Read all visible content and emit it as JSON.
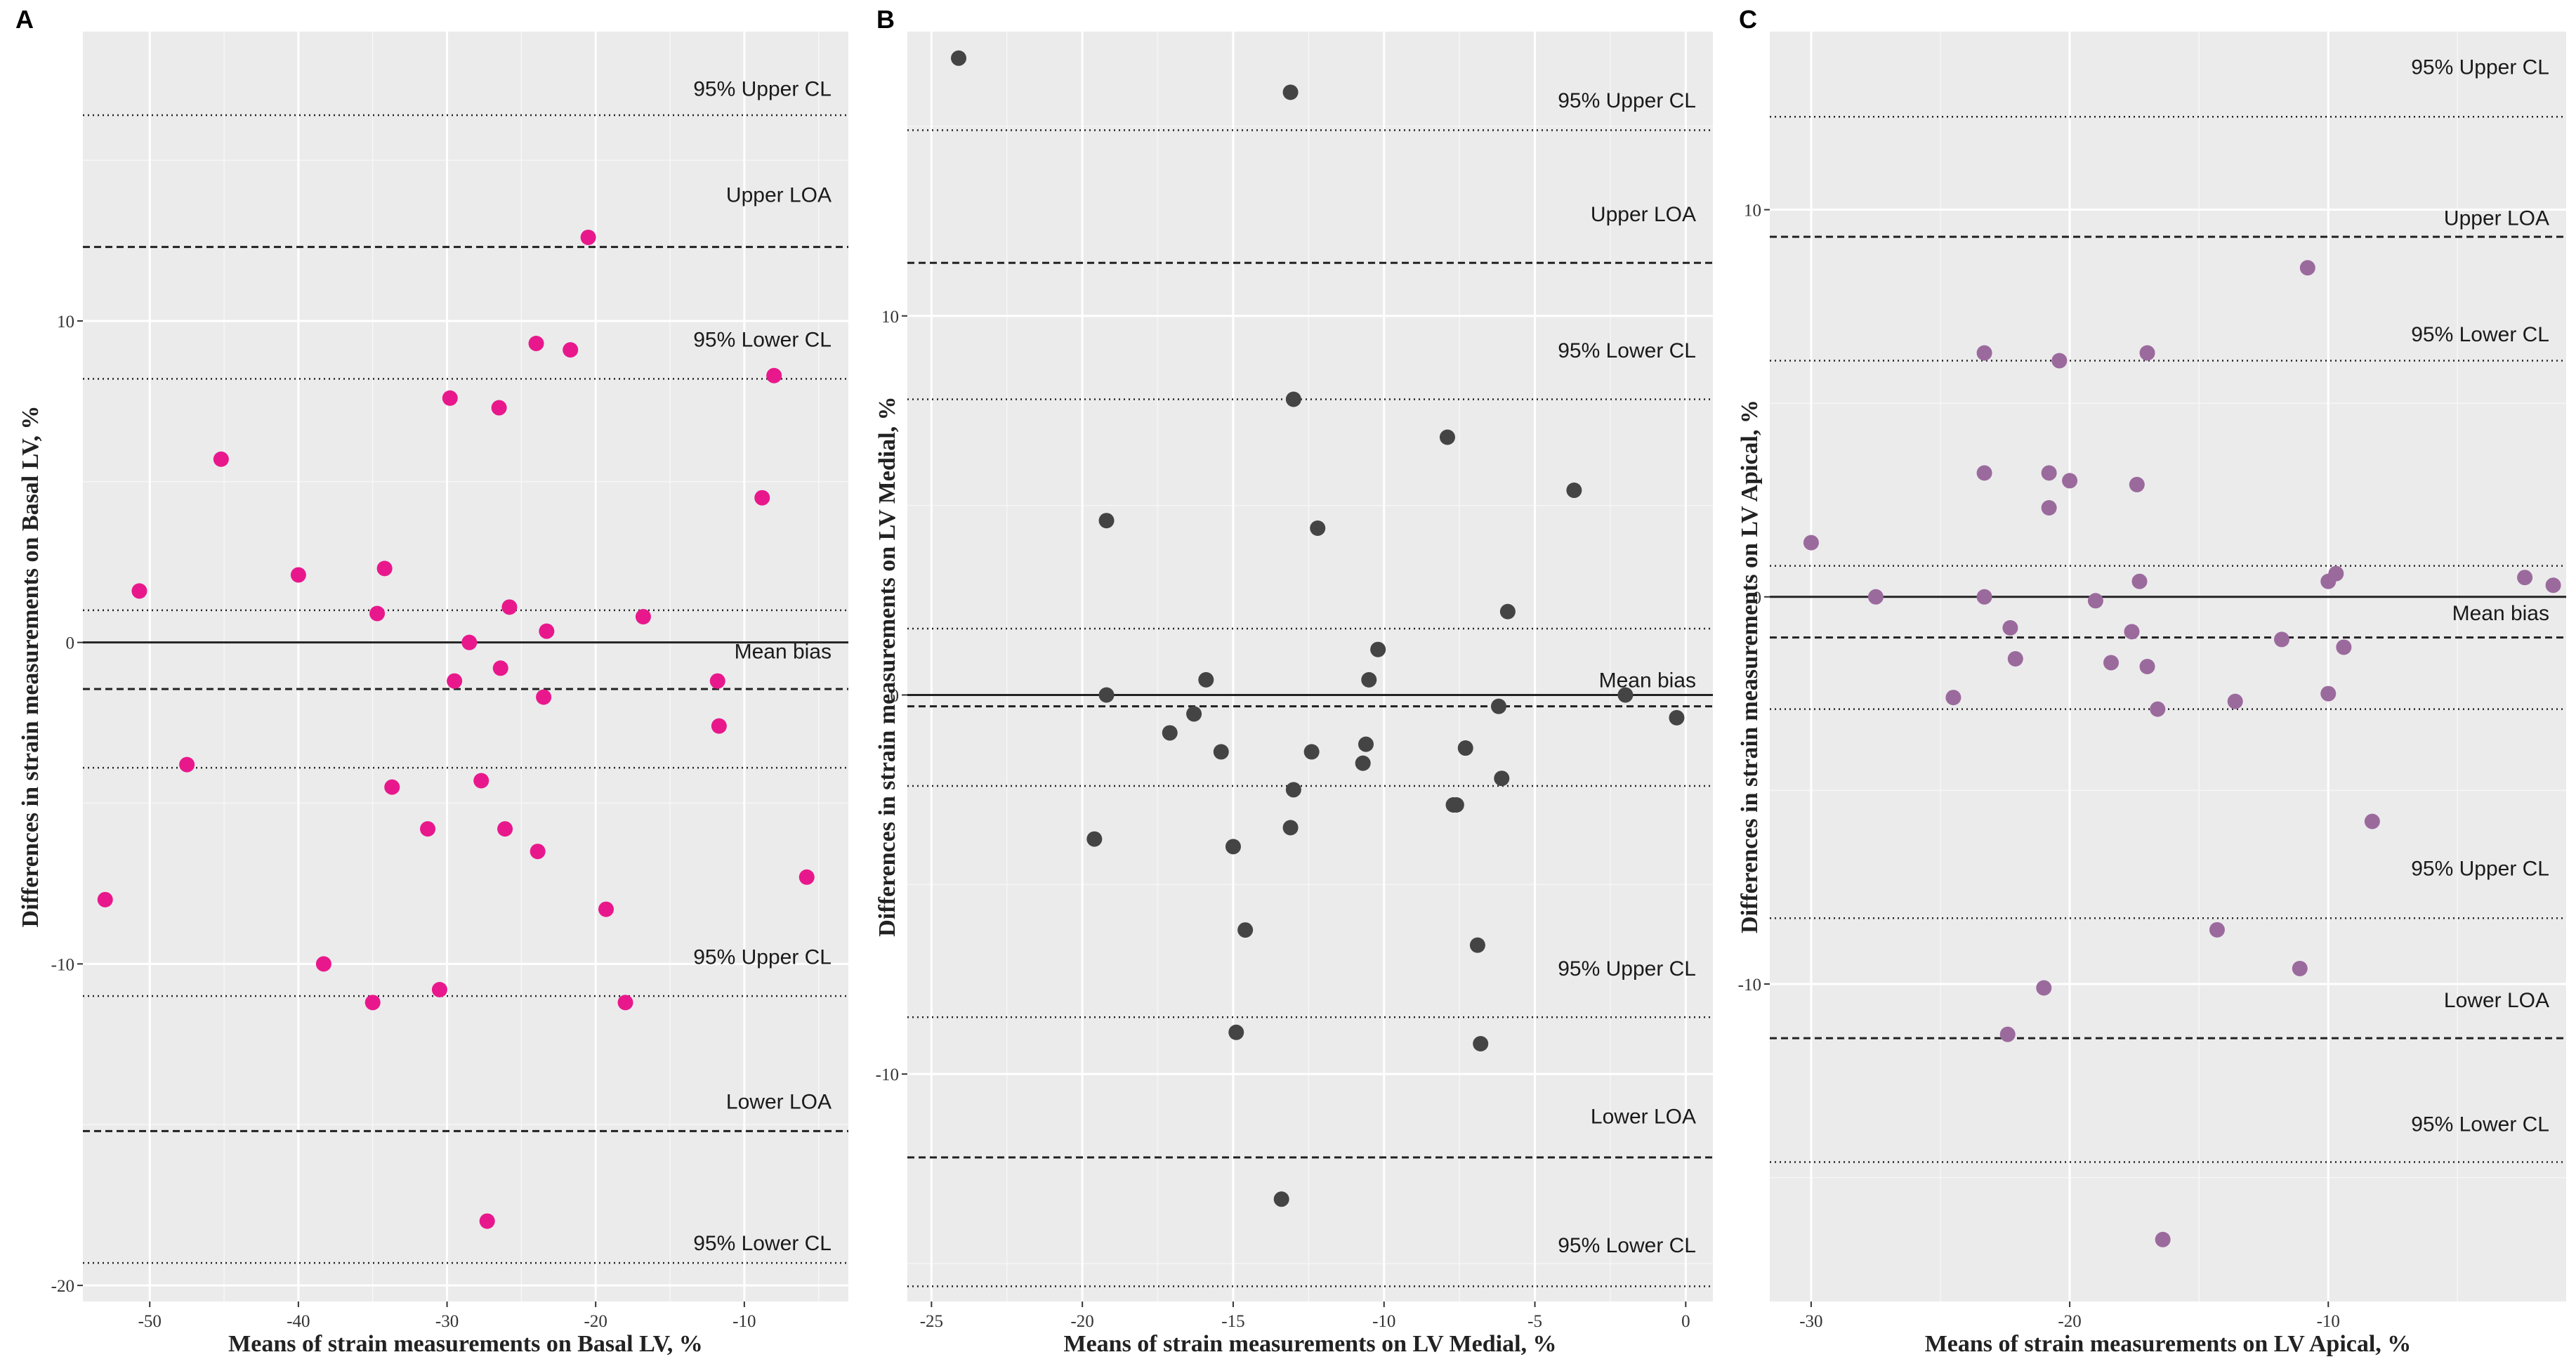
{
  "chart_data": [
    {
      "type": "scatter",
      "panel_label": "A",
      "xlabel": "Means of strain measurements on Basal LV, %",
      "ylabel": "Differences in strain measurements on Basal LV, %",
      "xlim": [
        -54.5,
        -3
      ],
      "ylim": [
        -20.5,
        19
      ],
      "x_ticks": [
        -50,
        -40,
        -30,
        -20,
        -10
      ],
      "x_tick_labels": [
        "-50",
        "-40",
        "-30",
        "-20",
        "-10"
      ],
      "y_ticks": [
        -20,
        -10,
        0,
        10
      ],
      "y_tick_labels": [
        "-20",
        "-10",
        "0",
        "10"
      ],
      "point_color": "#e8188c",
      "reference_lines": [
        {
          "name": "95% Upper CL",
          "y": 16.4,
          "style": "dotted",
          "label_y": 17.0
        },
        {
          "name": "Upper LOA",
          "y": 12.3,
          "style": "dashed",
          "label_y": 13.7
        },
        {
          "name": "95% Lower CL",
          "y": 8.2,
          "style": "dotted",
          "label_y": 9.2
        },
        {
          "name": "",
          "y": 1.0,
          "style": "dotted"
        },
        {
          "name": "Mean bias",
          "y": 0,
          "style": "solid",
          "label_y": -0.5
        },
        {
          "name": "",
          "y": -1.45,
          "style": "dashed"
        },
        {
          "name": "",
          "y": -3.9,
          "style": "dotted"
        },
        {
          "name": "95% Upper CL",
          "y": -11.0,
          "style": "dotted",
          "label_y": -10.0
        },
        {
          "name": "Lower LOA",
          "y": -15.2,
          "style": "dashed",
          "label_y": -14.5
        },
        {
          "name": "",
          "y": -19.3,
          "style": "dotted",
          "label_y": -18.9,
          "label": "95% Lower CL"
        }
      ],
      "points": [
        {
          "x": -53,
          "y": -8.0
        },
        {
          "x": -50.7,
          "y": 1.6
        },
        {
          "x": -47.5,
          "y": -3.8
        },
        {
          "x": -45.2,
          "y": 5.7
        },
        {
          "x": -40,
          "y": 2.1
        },
        {
          "x": -38.3,
          "y": -10.0
        },
        {
          "x": -35,
          "y": -11.2
        },
        {
          "x": -34.7,
          "y": 0.9
        },
        {
          "x": -34.2,
          "y": 2.3
        },
        {
          "x": -33.7,
          "y": -4.5
        },
        {
          "x": -31.3,
          "y": -5.8
        },
        {
          "x": -30.5,
          "y": -10.8
        },
        {
          "x": -29.8,
          "y": 7.6
        },
        {
          "x": -29.5,
          "y": -1.2
        },
        {
          "x": -28.5,
          "y": 0.0
        },
        {
          "x": -27.7,
          "y": -4.3
        },
        {
          "x": -27.3,
          "y": -18.0
        },
        {
          "x": -26.5,
          "y": 7.3
        },
        {
          "x": -26.4,
          "y": -0.8
        },
        {
          "x": -26.1,
          "y": -5.8
        },
        {
          "x": -25.8,
          "y": 1.1
        },
        {
          "x": -24.0,
          "y": 9.3
        },
        {
          "x": -23.9,
          "y": -6.5
        },
        {
          "x": -23.5,
          "y": -1.7
        },
        {
          "x": -23.3,
          "y": 0.35
        },
        {
          "x": -21.7,
          "y": 9.1
        },
        {
          "x": -20.5,
          "y": 12.6
        },
        {
          "x": -19.3,
          "y": -8.3
        },
        {
          "x": -18.0,
          "y": -11.2
        },
        {
          "x": -16.8,
          "y": 0.8
        },
        {
          "x": -11.8,
          "y": -1.2
        },
        {
          "x": -11.7,
          "y": -2.6
        },
        {
          "x": -8.8,
          "y": 4.5
        },
        {
          "x": -8.0,
          "y": 8.3
        },
        {
          "x": -5.8,
          "y": -7.3
        }
      ]
    },
    {
      "type": "scatter",
      "panel_label": "B",
      "xlabel": "Means of strain measurements on LV Medial, %",
      "ylabel": "Differences in strain measurements on LV Medial, %",
      "xlim": [
        -25.8,
        0.9
      ],
      "ylim": [
        -16,
        17.5
      ],
      "x_ticks": [
        -25,
        -20,
        -15,
        -10,
        -5,
        0
      ],
      "x_tick_labels": [
        "-25",
        "-20",
        "-15",
        "-10",
        "-5",
        "0"
      ],
      "y_ticks": [
        -10,
        0,
        10
      ],
      "y_tick_labels": [
        "-10",
        "0",
        "10"
      ],
      "point_color": "#444444",
      "reference_lines": [
        {
          "name": "95% Upper CL",
          "y": 14.9,
          "style": "dotted",
          "label_y": 15.5
        },
        {
          "name": "Upper LOA",
          "y": 11.4,
          "style": "dashed",
          "label_y": 12.5
        },
        {
          "name": "95% Lower CL",
          "y": 7.8,
          "style": "dotted",
          "label_y": 8.9
        },
        {
          "name": "",
          "y": 1.75,
          "style": "dotted"
        },
        {
          "name": "Mean bias",
          "y": 0,
          "style": "solid",
          "label_y": 0.2
        },
        {
          "name": "",
          "y": -0.3,
          "style": "dashed"
        },
        {
          "name": "",
          "y": -2.4,
          "style": "dotted"
        },
        {
          "name": "95% Upper CL",
          "y": -8.5,
          "style": "dotted",
          "label_y": -7.4
        },
        {
          "name": "Lower LOA",
          "y": -12.2,
          "style": "dashed",
          "label_y": -11.3
        },
        {
          "name": "95% Lower CL",
          "y": -15.6,
          "style": "dotted",
          "label_y": -14.7
        }
      ],
      "points": [
        {
          "x": -24.1,
          "y": 16.8
        },
        {
          "x": -19.6,
          "y": -3.8
        },
        {
          "x": -19.2,
          "y": 4.6
        },
        {
          "x": -19.2,
          "y": 0.0
        },
        {
          "x": -17.1,
          "y": -1.0
        },
        {
          "x": -16.3,
          "y": -0.5
        },
        {
          "x": -15.9,
          "y": 0.4
        },
        {
          "x": -15.4,
          "y": -1.5
        },
        {
          "x": -15.0,
          "y": -4.0
        },
        {
          "x": -14.9,
          "y": -8.9
        },
        {
          "x": -14.6,
          "y": -6.2
        },
        {
          "x": -13.4,
          "y": -13.3
        },
        {
          "x": -13.1,
          "y": 15.9
        },
        {
          "x": -13.0,
          "y": 7.8
        },
        {
          "x": -13.1,
          "y": -3.5
        },
        {
          "x": -13.0,
          "y": -2.5
        },
        {
          "x": -12.4,
          "y": -1.5
        },
        {
          "x": -12.2,
          "y": 4.4
        },
        {
          "x": -10.7,
          "y": -1.8
        },
        {
          "x": -10.6,
          "y": -1.3
        },
        {
          "x": -10.5,
          "y": 0.4
        },
        {
          "x": -10.2,
          "y": 1.2
        },
        {
          "x": -7.9,
          "y": 6.8
        },
        {
          "x": -7.7,
          "y": -2.9
        },
        {
          "x": -7.6,
          "y": -2.9
        },
        {
          "x": -7.3,
          "y": -1.4
        },
        {
          "x": -6.9,
          "y": -6.6
        },
        {
          "x": -6.8,
          "y": -9.2
        },
        {
          "x": -6.2,
          "y": -0.3
        },
        {
          "x": -6.1,
          "y": -2.2
        },
        {
          "x": -5.9,
          "y": 2.2
        },
        {
          "x": -3.7,
          "y": 5.4
        },
        {
          "x": -2.0,
          "y": 0.0
        },
        {
          "x": -0.3,
          "y": -0.6
        }
      ]
    },
    {
      "type": "scatter",
      "panel_label": "C",
      "xlabel": "Means of strain measurements on LV Apical, %",
      "ylabel": "Differences in strain measurements on LV Apical, %",
      "xlim": [
        -31.6,
        -0.8
      ],
      "ylim": [
        -18.2,
        14.6
      ],
      "x_ticks": [
        -30,
        -20,
        -10
      ],
      "x_tick_labels": [
        "-30",
        "-20",
        "-10"
      ],
      "y_ticks": [
        -10,
        0,
        10
      ],
      "y_tick_labels": [
        "-10",
        "0",
        "10"
      ],
      "point_color": "#9b6a9d",
      "reference_lines": [
        {
          "name": "95% Upper CL",
          "y": 12.4,
          "style": "dotted",
          "label_y": 13.5
        },
        {
          "name": "Upper LOA",
          "y": 9.3,
          "style": "dashed",
          "label_y": 9.6
        },
        {
          "name": "95% Lower CL",
          "y": 6.1,
          "style": "dotted",
          "label_y": 6.6
        },
        {
          "name": "",
          "y": 0.8,
          "style": "dotted"
        },
        {
          "name": "Mean bias",
          "y": 0,
          "style": "solid",
          "label_y": -0.6
        },
        {
          "name": "",
          "y": -1.05,
          "style": "dashed"
        },
        {
          "name": "",
          "y": -2.9,
          "style": "dotted"
        },
        {
          "name": "95% Upper CL",
          "y": -8.3,
          "style": "dotted",
          "label_y": -7.2
        },
        {
          "name": "Lower LOA",
          "y": -11.4,
          "style": "dashed",
          "label_y": -10.6
        },
        {
          "name": "95% Lower CL",
          "y": -14.6,
          "style": "dotted",
          "label_y": -13.8
        }
      ],
      "points": [
        {
          "x": -30.0,
          "y": 1.4
        },
        {
          "x": -27.5,
          "y": 0.0
        },
        {
          "x": -24.5,
          "y": -2.6
        },
        {
          "x": -23.3,
          "y": 6.3
        },
        {
          "x": -23.3,
          "y": 3.2
        },
        {
          "x": -23.3,
          "y": 0.0
        },
        {
          "x": -22.4,
          "y": -11.3
        },
        {
          "x": -22.3,
          "y": -0.8
        },
        {
          "x": -22.1,
          "y": -1.6
        },
        {
          "x": -21.0,
          "y": -10.1
        },
        {
          "x": -20.8,
          "y": 3.2
        },
        {
          "x": -20.8,
          "y": 2.3
        },
        {
          "x": -20.4,
          "y": 6.1
        },
        {
          "x": -20.0,
          "y": 3.0
        },
        {
          "x": -19.0,
          "y": -0.1
        },
        {
          "x": -18.4,
          "y": -1.7
        },
        {
          "x": -17.6,
          "y": -0.9
        },
        {
          "x": -17.4,
          "y": 2.9
        },
        {
          "x": -17.3,
          "y": 0.4
        },
        {
          "x": -17.0,
          "y": 6.3
        },
        {
          "x": -17.0,
          "y": -1.8
        },
        {
          "x": -16.6,
          "y": -2.9
        },
        {
          "x": -16.4,
          "y": -16.6
        },
        {
          "x": -14.3,
          "y": -8.6
        },
        {
          "x": -13.6,
          "y": -2.7
        },
        {
          "x": -11.8,
          "y": -1.1
        },
        {
          "x": -11.1,
          "y": -9.6
        },
        {
          "x": -10.8,
          "y": 8.5
        },
        {
          "x": -10.0,
          "y": 0.4
        },
        {
          "x": -10.0,
          "y": -2.5
        },
        {
          "x": -9.7,
          "y": 0.6
        },
        {
          "x": -9.4,
          "y": -1.3
        },
        {
          "x": -8.3,
          "y": -5.8
        },
        {
          "x": -2.4,
          "y": 0.5
        },
        {
          "x": -1.3,
          "y": 0.3
        }
      ]
    }
  ]
}
